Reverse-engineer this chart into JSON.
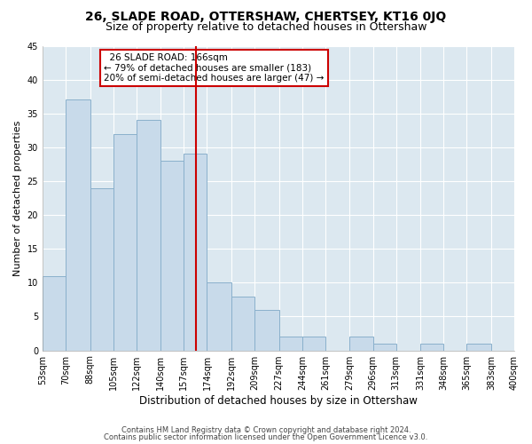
{
  "title": "26, SLADE ROAD, OTTERSHAW, CHERTSEY, KT16 0JQ",
  "subtitle": "Size of property relative to detached houses in Ottershaw",
  "xlabel": "Distribution of detached houses by size in Ottershaw",
  "ylabel": "Number of detached properties",
  "bin_edges": [
    53,
    70,
    88,
    105,
    122,
    140,
    157,
    174,
    192,
    209,
    227,
    244,
    261,
    279,
    296,
    313,
    331,
    348,
    365,
    383,
    400
  ],
  "counts": [
    11,
    37,
    24,
    32,
    34,
    28,
    29,
    10,
    8,
    6,
    2,
    2,
    0,
    2,
    1,
    0,
    1,
    0,
    1,
    0
  ],
  "bar_color": "#c8daea",
  "bar_edge_color": "#8ab0cc",
  "property_size": 166,
  "vline_color": "#cc0000",
  "ylim": [
    0,
    45
  ],
  "yticks": [
    0,
    5,
    10,
    15,
    20,
    25,
    30,
    35,
    40,
    45
  ],
  "annotation_title": "26 SLADE ROAD: 166sqm",
  "annotation_line1": "← 79% of detached houses are smaller (183)",
  "annotation_line2": "20% of semi-detached houses are larger (47) →",
  "annotation_box_facecolor": "#ffffff",
  "annotation_box_edgecolor": "#cc0000",
  "footer1": "Contains HM Land Registry data © Crown copyright and database right 2024.",
  "footer2": "Contains public sector information licensed under the Open Government Licence v3.0.",
  "fig_facecolor": "#ffffff",
  "axes_facecolor": "#dce8f0",
  "grid_color": "#ffffff",
  "title_fontsize": 10,
  "subtitle_fontsize": 9,
  "ylabel_fontsize": 8,
  "xlabel_fontsize": 8.5,
  "tick_fontsize": 7,
  "annotation_fontsize": 7.5,
  "footer_fontsize": 6
}
